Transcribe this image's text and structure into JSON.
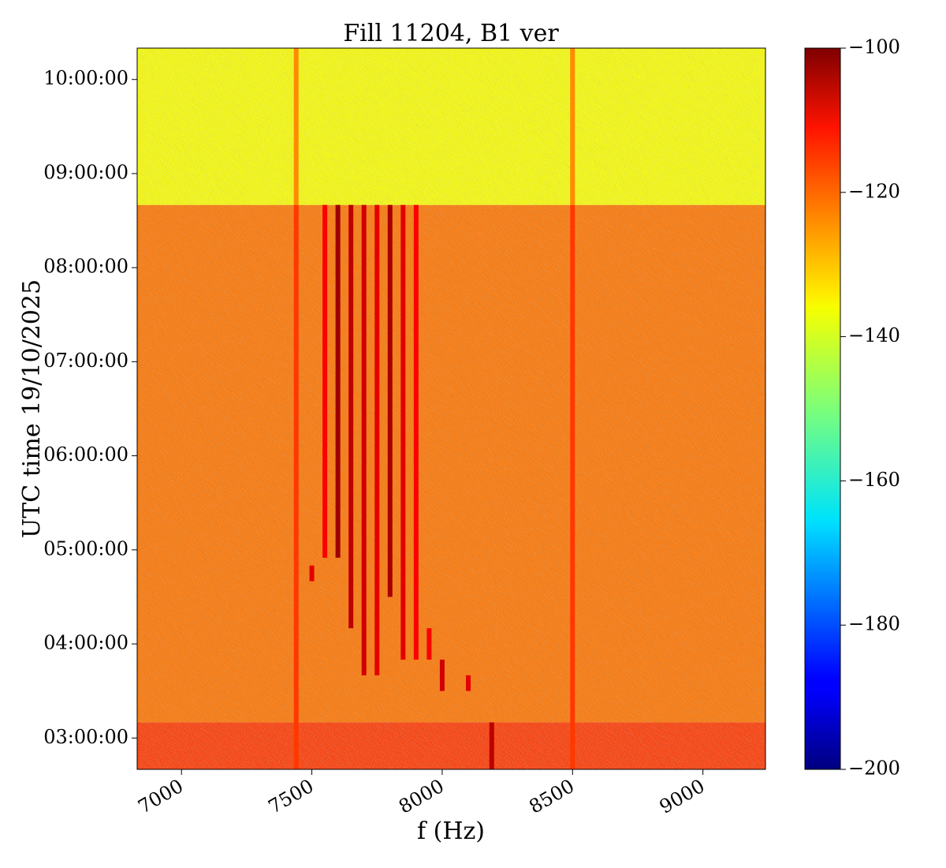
{
  "chart_data": {
    "type": "heatmap",
    "title": "Fill 11204, B1 ver",
    "xlabel": "f (Hz)",
    "ylabel": "UTC time 19/10/2025",
    "colormap": "jet",
    "xlim": [
      6830,
      9240
    ],
    "ylim": [
      "02:40:00",
      "10:20:00"
    ],
    "x_ticks": [
      {
        "value": 7000,
        "label": "7000"
      },
      {
        "value": 7500,
        "label": "7500"
      },
      {
        "value": 8000,
        "label": "8000"
      },
      {
        "value": 8500,
        "label": "8500"
      },
      {
        "value": 9000,
        "label": "9000"
      }
    ],
    "y_ticks": [
      {
        "value": "03:00:00",
        "label": "03:00:00"
      },
      {
        "value": "04:00:00",
        "label": "04:00:00"
      },
      {
        "value": "05:00:00",
        "label": "05:00:00"
      },
      {
        "value": "06:00:00",
        "label": "06:00:00"
      },
      {
        "value": "07:00:00",
        "label": "07:00:00"
      },
      {
        "value": "08:00:00",
        "label": "08:00:00"
      },
      {
        "value": "09:00:00",
        "label": "09:00:00"
      },
      {
        "value": "10:00:00",
        "label": "10:00:00"
      }
    ],
    "colorbar": {
      "range": [
        -200,
        -100
      ],
      "ticks": [
        {
          "value": -100,
          "label": "−100"
        },
        {
          "value": -120,
          "label": "−120"
        },
        {
          "value": -140,
          "label": "−140"
        },
        {
          "value": -160,
          "label": "−160"
        },
        {
          "value": -180,
          "label": "−180"
        },
        {
          "value": -200,
          "label": "−200"
        }
      ]
    },
    "regions": [
      {
        "t_start": "02:40:00",
        "t_end": "03:10:00",
        "level": -118
      },
      {
        "t_start": "03:10:00",
        "t_end": "08:40:00",
        "level": -124
      },
      {
        "t_start": "08:40:00",
        "t_end": "10:20:00",
        "level": -138
      }
    ],
    "lines": [
      {
        "f": 7440,
        "t_start": "02:40:00",
        "t_end": "08:40:00",
        "level": -118
      },
      {
        "f": 8500,
        "t_start": "02:40:00",
        "t_end": "08:40:00",
        "level": -118
      },
      {
        "f": 7440,
        "t_start": "08:40:00",
        "t_end": "10:20:00",
        "level": -126
      },
      {
        "f": 8500,
        "t_start": "08:40:00",
        "t_end": "10:20:00",
        "level": -126
      },
      {
        "f": 7600,
        "t_start": "04:55:00",
        "t_end": "08:40:00",
        "level": -103
      },
      {
        "f": 7650,
        "t_start": "04:10:00",
        "t_end": "08:40:00",
        "level": -106
      },
      {
        "f": 7700,
        "t_start": "03:40:00",
        "t_end": "08:40:00",
        "level": -108
      },
      {
        "f": 7750,
        "t_start": "03:40:00",
        "t_end": "08:40:00",
        "level": -110
      },
      {
        "f": 7800,
        "t_start": "04:30:00",
        "t_end": "08:40:00",
        "level": -104
      },
      {
        "f": 7850,
        "t_start": "03:50:00",
        "t_end": "08:40:00",
        "level": -110
      },
      {
        "f": 7900,
        "t_start": "03:50:00",
        "t_end": "08:40:00",
        "level": -112
      },
      {
        "f": 7550,
        "t_start": "04:55:00",
        "t_end": "08:40:00",
        "level": -112
      },
      {
        "f": 7500,
        "t_start": "04:40:00",
        "t_end": "04:50:00",
        "level": -110
      },
      {
        "f": 7950,
        "t_start": "03:50:00",
        "t_end": "04:10:00",
        "level": -112
      },
      {
        "f": 8000,
        "t_start": "03:30:00",
        "t_end": "03:50:00",
        "level": -108
      },
      {
        "f": 8100,
        "t_start": "03:30:00",
        "t_end": "03:40:00",
        "level": -110
      },
      {
        "f": 8190,
        "t_start": "02:40:00",
        "t_end": "03:10:00",
        "level": -106
      }
    ]
  }
}
